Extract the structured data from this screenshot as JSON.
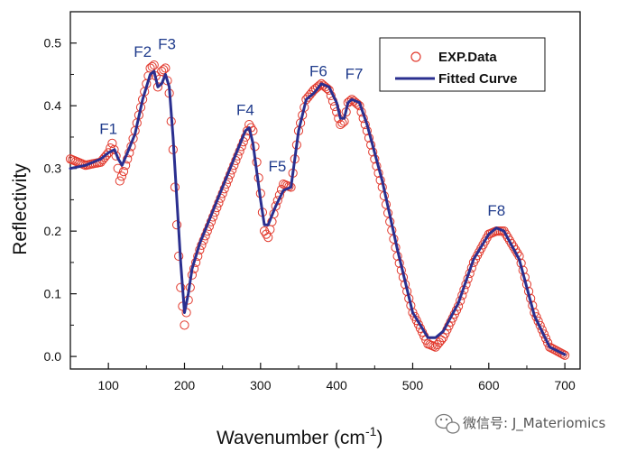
{
  "chart_data": {
    "type": "scatter",
    "xlabel": "Wavenumber (cm",
    "xlabel_sup": "-1",
    "xlabel_end": ")",
    "ylabel": "Reflectivity",
    "xlim": [
      50,
      720
    ],
    "ylim": [
      -0.02,
      0.55
    ],
    "x_ticks": [
      100,
      200,
      300,
      400,
      500,
      600,
      700
    ],
    "y_ticks": [
      0.0,
      0.1,
      0.2,
      0.3,
      0.4,
      0.5
    ],
    "grid": false,
    "legend": {
      "position": "top-right"
    },
    "series": [
      {
        "name": "EXP.Data",
        "style": "open-circle",
        "color": "#e23a2e",
        "x": [
          50,
          70,
          90,
          100,
          105,
          110,
          115,
          120,
          130,
          145,
          155,
          160,
          165,
          170,
          175,
          180,
          185,
          190,
          195,
          200,
          205,
          210,
          220,
          240,
          260,
          280,
          285,
          290,
          300,
          305,
          310,
          320,
          330,
          340,
          350,
          360,
          370,
          380,
          390,
          400,
          405,
          410,
          415,
          420,
          430,
          440,
          460,
          480,
          500,
          520,
          530,
          540,
          560,
          580,
          600,
          610,
          620,
          640,
          660,
          680,
          700
        ],
        "y": [
          0.315,
          0.305,
          0.31,
          0.325,
          0.34,
          0.32,
          0.28,
          0.295,
          0.335,
          0.41,
          0.46,
          0.465,
          0.43,
          0.455,
          0.46,
          0.42,
          0.33,
          0.21,
          0.11,
          0.05,
          0.09,
          0.13,
          0.17,
          0.23,
          0.29,
          0.35,
          0.37,
          0.36,
          0.26,
          0.2,
          0.19,
          0.24,
          0.275,
          0.27,
          0.36,
          0.41,
          0.425,
          0.435,
          0.425,
          0.39,
          0.37,
          0.375,
          0.405,
          0.41,
          0.4,
          0.36,
          0.27,
          0.16,
          0.07,
          0.02,
          0.015,
          0.03,
          0.08,
          0.15,
          0.195,
          0.2,
          0.2,
          0.16,
          0.07,
          0.015,
          0.002
        ]
      },
      {
        "name": "Fitted Curve",
        "style": "line",
        "color": "#2a2f8f",
        "x": [
          50,
          70,
          90,
          100,
          108,
          113,
          118,
          125,
          135,
          145,
          155,
          160,
          165,
          170,
          175,
          180,
          185,
          190,
          195,
          200,
          205,
          210,
          220,
          240,
          260,
          280,
          285,
          290,
          300,
          305,
          310,
          320,
          330,
          340,
          350,
          360,
          370,
          380,
          390,
          400,
          405,
          410,
          415,
          420,
          430,
          440,
          460,
          480,
          500,
          520,
          530,
          540,
          560,
          580,
          600,
          610,
          620,
          640,
          660,
          680,
          700
        ],
        "y": [
          0.3,
          0.305,
          0.315,
          0.325,
          0.33,
          0.315,
          0.305,
          0.325,
          0.355,
          0.41,
          0.45,
          0.455,
          0.43,
          0.435,
          0.45,
          0.43,
          0.35,
          0.25,
          0.15,
          0.07,
          0.1,
          0.14,
          0.18,
          0.24,
          0.3,
          0.36,
          0.365,
          0.34,
          0.25,
          0.21,
          0.21,
          0.24,
          0.265,
          0.27,
          0.36,
          0.41,
          0.42,
          0.435,
          0.43,
          0.405,
          0.38,
          0.38,
          0.405,
          0.41,
          0.405,
          0.37,
          0.28,
          0.17,
          0.07,
          0.03,
          0.03,
          0.04,
          0.085,
          0.155,
          0.195,
          0.205,
          0.2,
          0.155,
          0.065,
          0.015,
          0.003
        ]
      }
    ],
    "annotations": [
      {
        "text": "F1",
        "x": 100,
        "y": 0.355
      },
      {
        "text": "F2",
        "x": 145,
        "y": 0.478
      },
      {
        "text": "F3",
        "x": 177,
        "y": 0.49
      },
      {
        "text": "F4",
        "x": 280,
        "y": 0.385
      },
      {
        "text": "F5",
        "x": 322,
        "y": 0.295
      },
      {
        "text": "F6",
        "x": 376,
        "y": 0.447
      },
      {
        "text": "F7",
        "x": 423,
        "y": 0.443
      },
      {
        "text": "F8",
        "x": 610,
        "y": 0.225
      }
    ]
  },
  "watermark": {
    "text": "微信号: J_Materiomics",
    "icon": "wechat-icon"
  }
}
